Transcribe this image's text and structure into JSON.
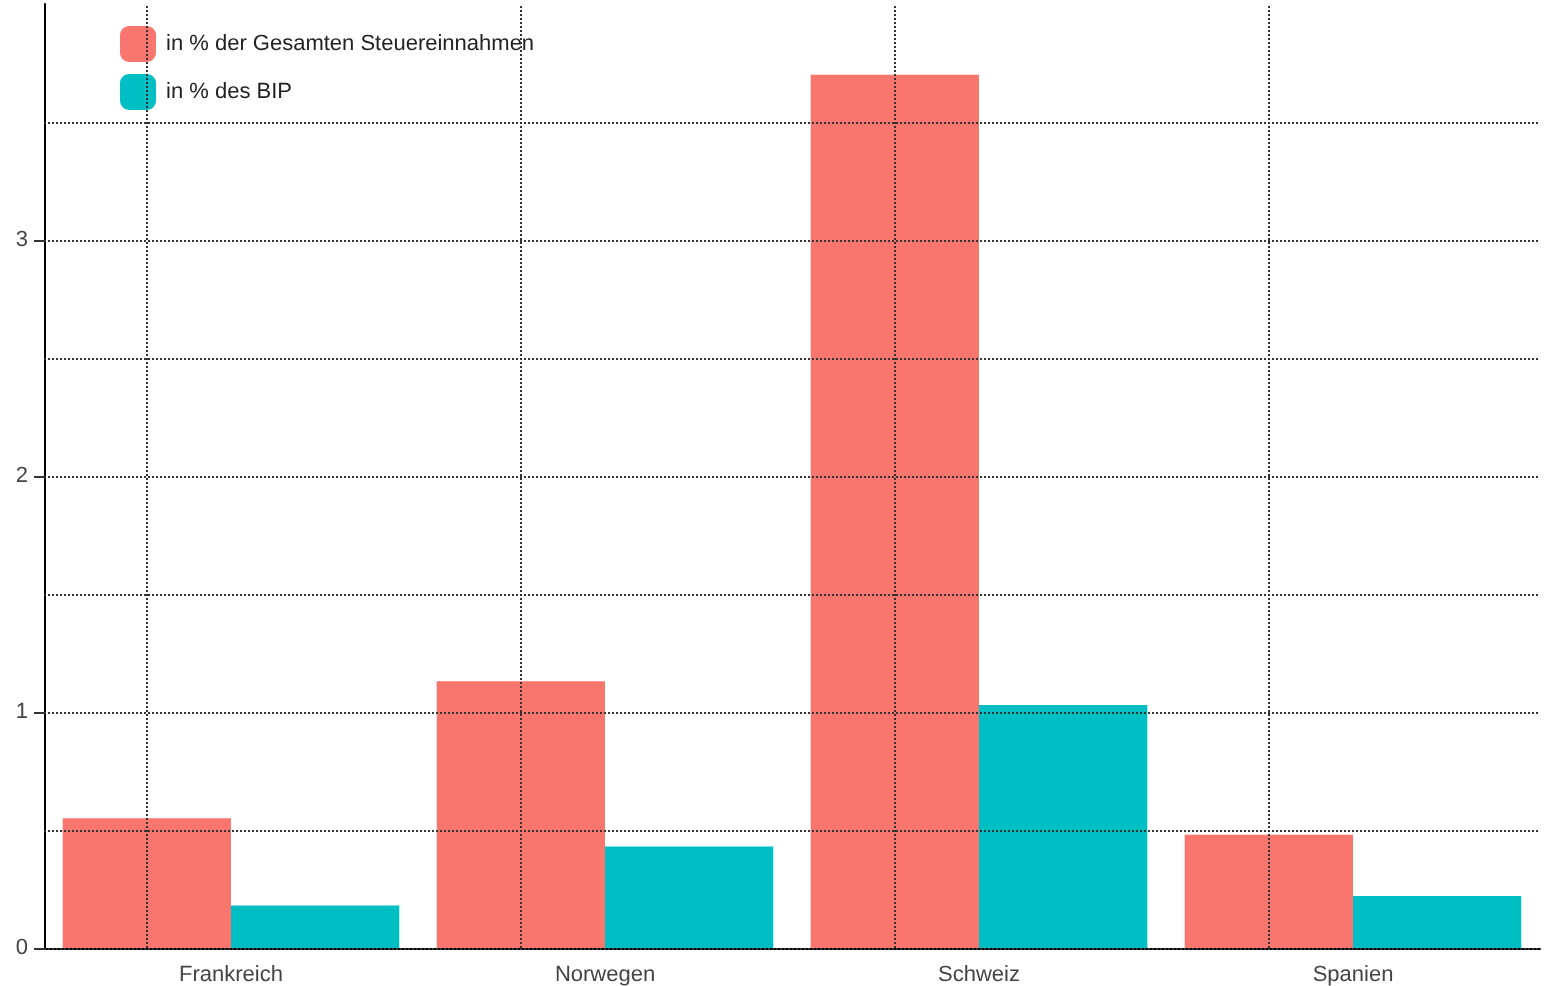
{
  "chart_data": {
    "type": "bar",
    "categories": [
      "Frankreich",
      "Norwegen",
      "Schweiz",
      "Spanien"
    ],
    "series": [
      {
        "name": "in % der Gesamten Steuereinnahmen",
        "color": "#f8766d",
        "values": [
          0.55,
          1.13,
          3.7,
          0.48
        ]
      },
      {
        "name": "in % des BIP",
        "color": "#00bfc4",
        "values": [
          0.18,
          0.43,
          1.03,
          0.22
        ]
      }
    ],
    "ylim": [
      0,
      4
    ],
    "yticks": [
      0,
      {
        "value": 0.5,
        "label": null
      },
      1,
      {
        "value": 1.5,
        "label": null
      },
      2,
      {
        "value": 2.5,
        "label": null
      },
      3,
      {
        "value": 3.5,
        "label": null
      }
    ],
    "grid": true,
    "legend": "top left"
  }
}
